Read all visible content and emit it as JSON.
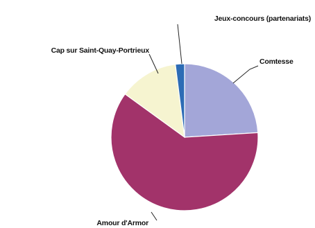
{
  "chart_data": {
    "type": "pie",
    "title": "",
    "legend": "none",
    "slices": [
      {
        "label": "Comtesse",
        "value": 24,
        "color": "#a3a6d8"
      },
      {
        "label": "Amour d'Armor",
        "value": 61,
        "color": "#a2336a"
      },
      {
        "label": "Cap sur Saint-Quay-Portrieux",
        "value": 13,
        "color": "#f6f4d0"
      },
      {
        "label": "Jeux-concours (partenariats)",
        "value": 2,
        "color": "#2d6cb5"
      }
    ]
  }
}
